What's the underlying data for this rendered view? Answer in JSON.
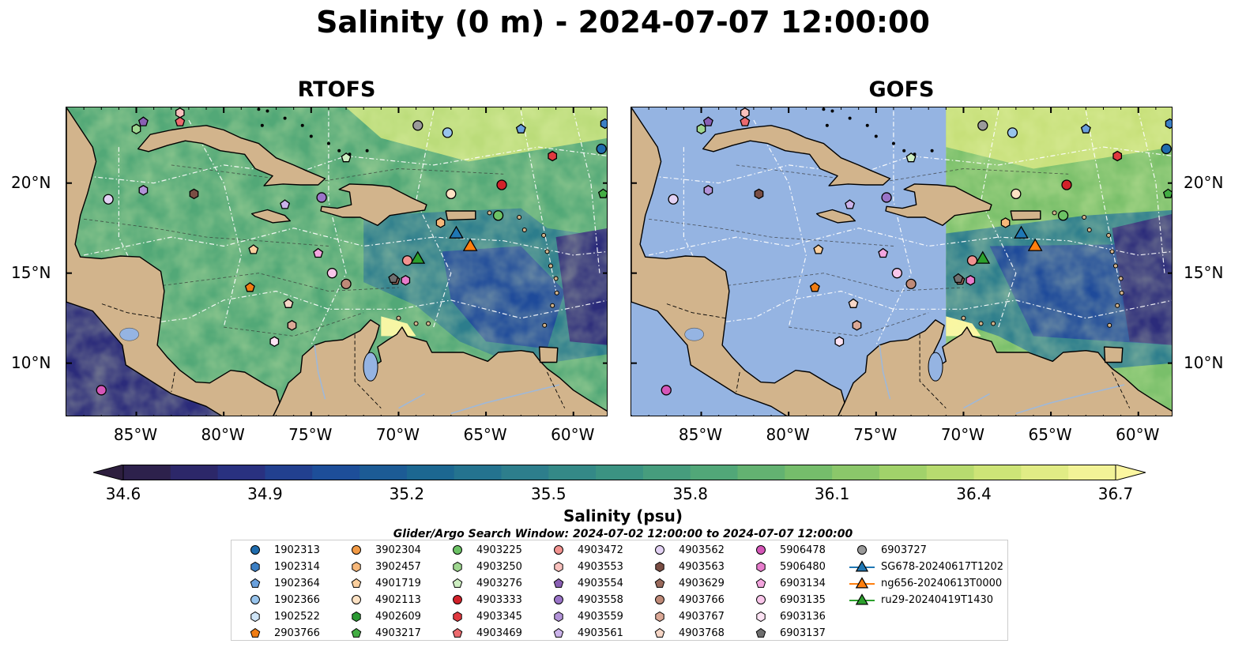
{
  "title": "Salinity (0 m) - 2024-07-07 12:00:00",
  "panels": [
    {
      "title": "RTOFS"
    },
    {
      "title": "GOFS"
    }
  ],
  "axes": {
    "lon_labels": [
      "85°W",
      "80°W",
      "75°W",
      "70°W",
      "65°W",
      "60°W"
    ],
    "lon_values": [
      -85,
      -80,
      -75,
      -70,
      -65,
      -60
    ],
    "lat_labels": [
      "20°N",
      "15°N",
      "10°N"
    ],
    "lat_values": [
      20,
      15,
      10
    ],
    "lon_range": [
      -89,
      -58
    ],
    "lat_range": [
      7,
      24.2
    ]
  },
  "colorbar": {
    "label": "Salinity (psu)",
    "ticks": [
      "34.6",
      "34.9",
      "35.2",
      "35.5",
      "35.8",
      "36.1",
      "36.4",
      "36.7"
    ],
    "range": [
      34.6,
      36.7
    ],
    "extend": "both",
    "colormap": [
      "#2d1e3e",
      "#2b2b7a",
      "#1e4a9a",
      "#1a6592",
      "#2c7d8c",
      "#3b9382",
      "#52a877",
      "#79bf6a",
      "#a8d56a",
      "#d6e87a",
      "#fbf6a0"
    ]
  },
  "search_window": "Glider/Argo Search Window: 2024-07-02 12:00:00 to 2024-07-07 12:00:00",
  "legend": [
    {
      "label": "1902313",
      "shape": "circle",
      "color": "#1f6cad"
    },
    {
      "label": "1902314",
      "shape": "hexagon",
      "color": "#3b7fc4"
    },
    {
      "label": "1902364",
      "shape": "pentagon",
      "color": "#6aa0dc"
    },
    {
      "label": "1902366",
      "shape": "circle",
      "color": "#98c4ec"
    },
    {
      "label": "1902522",
      "shape": "hexagon",
      "color": "#cfe5f7"
    },
    {
      "label": "2903766",
      "shape": "pentagon",
      "color": "#f07c12"
    },
    {
      "label": "3902304",
      "shape": "circle",
      "color": "#f29a45"
    },
    {
      "label": "3902457",
      "shape": "hexagon",
      "color": "#f7b87a"
    },
    {
      "label": "4901719",
      "shape": "pentagon",
      "color": "#fbcf9d"
    },
    {
      "label": "4902113",
      "shape": "circle",
      "color": "#fde2c4"
    },
    {
      "label": "4902609",
      "shape": "hexagon",
      "color": "#2c9a34"
    },
    {
      "label": "4903217",
      "shape": "pentagon",
      "color": "#43ad43"
    },
    {
      "label": "4903225",
      "shape": "circle",
      "color": "#6cc265"
    },
    {
      "label": "4903250",
      "shape": "hexagon",
      "color": "#9ed68f"
    },
    {
      "label": "4903276",
      "shape": "pentagon",
      "color": "#cdeec1"
    },
    {
      "label": "4903333",
      "shape": "circle",
      "color": "#d2222a"
    },
    {
      "label": "4903345",
      "shape": "hexagon",
      "color": "#e0393f"
    },
    {
      "label": "4903469",
      "shape": "pentagon",
      "color": "#ec6a6e"
    },
    {
      "label": "4903472",
      "shape": "circle",
      "color": "#f29390"
    },
    {
      "label": "4903553",
      "shape": "hexagon",
      "color": "#f9c1bd"
    },
    {
      "label": "4903554",
      "shape": "pentagon",
      "color": "#8a5fb4"
    },
    {
      "label": "4903558",
      "shape": "circle",
      "color": "#9a74c8"
    },
    {
      "label": "4903559",
      "shape": "hexagon",
      "color": "#b293d8"
    },
    {
      "label": "4903561",
      "shape": "pentagon",
      "color": "#cbb3ea"
    },
    {
      "label": "4903562",
      "shape": "circle",
      "color": "#e3d2f4"
    },
    {
      "label": "4903563",
      "shape": "hexagon",
      "color": "#7a4e44"
    },
    {
      "label": "4903629",
      "shape": "pentagon",
      "color": "#9a6a5c"
    },
    {
      "label": "4903766",
      "shape": "circle",
      "color": "#bf8a78"
    },
    {
      "label": "4903767",
      "shape": "hexagon",
      "color": "#dba896"
    },
    {
      "label": "4903768",
      "shape": "pentagon",
      "color": "#f6d6c6"
    },
    {
      "label": "5906478",
      "shape": "circle",
      "color": "#d556b8"
    },
    {
      "label": "5906480",
      "shape": "hexagon",
      "color": "#e77ccc"
    },
    {
      "label": "6903134",
      "shape": "pentagon",
      "color": "#f3a5de"
    },
    {
      "label": "6903135",
      "shape": "circle",
      "color": "#f9c6ea"
    },
    {
      "label": "6903136",
      "shape": "hexagon",
      "color": "#fde3f4"
    },
    {
      "label": "6903137",
      "shape": "pentagon",
      "color": "#6f6f6f"
    },
    {
      "label": "6903727",
      "shape": "circle",
      "color": "#9a9a9a"
    },
    {
      "label": "SG678-20240617T1202",
      "shape": "triangle",
      "color": "#1f77b4"
    },
    {
      "label": "ng656-20240613T0000",
      "shape": "triangle",
      "color": "#ff7f0e"
    },
    {
      "label": "ru29-20240419T1430",
      "shape": "triangle",
      "color": "#2ca02c"
    }
  ],
  "markers": [
    {
      "id": "1902313",
      "lon": -58.4,
      "lat": 21.9
    },
    {
      "id": "1902314",
      "lon": -58.2,
      "lat": 23.3
    },
    {
      "id": "1902364",
      "lon": -63.0,
      "lat": 23.0
    },
    {
      "id": "1902366",
      "lon": -67.2,
      "lat": 22.8
    },
    {
      "id": "2903766",
      "lon": -78.5,
      "lat": 14.2
    },
    {
      "id": "4901719",
      "lon": -78.3,
      "lat": 16.3
    },
    {
      "id": "3902457",
      "lon": -67.6,
      "lat": 17.8
    },
    {
      "id": "4902113",
      "lon": -67.0,
      "lat": 19.4
    },
    {
      "id": "4903225",
      "lon": -64.3,
      "lat": 18.2
    },
    {
      "id": "4903217",
      "lon": -58.3,
      "lat": 19.4
    },
    {
      "id": "4903250",
      "lon": -85.0,
      "lat": 23.0
    },
    {
      "id": "4903276",
      "lon": -73.0,
      "lat": 21.4
    },
    {
      "id": "4903333",
      "lon": -64.1,
      "lat": 19.9
    },
    {
      "id": "4903345",
      "lon": -61.2,
      "lat": 21.5
    },
    {
      "id": "4903469",
      "lon": -82.5,
      "lat": 23.4
    },
    {
      "id": "4903553",
      "lon": -82.5,
      "lat": 23.9
    },
    {
      "id": "4903554",
      "lon": -84.6,
      "lat": 23.4
    },
    {
      "id": "4903558",
      "lon": -74.4,
      "lat": 19.2
    },
    {
      "id": "4903559",
      "lon": -84.6,
      "lat": 19.6
    },
    {
      "id": "4903561",
      "lon": -76.5,
      "lat": 18.8
    },
    {
      "id": "4903562",
      "lon": -86.6,
      "lat": 19.1
    },
    {
      "id": "4903563",
      "lon": -81.7,
      "lat": 19.4
    },
    {
      "id": "4903629",
      "lon": -70.2,
      "lat": 14.6
    },
    {
      "id": "4903766",
      "lon": -73.0,
      "lat": 14.4
    },
    {
      "id": "4903767",
      "lon": -76.1,
      "lat": 12.1
    },
    {
      "id": "4903768",
      "lon": -76.3,
      "lat": 13.3
    },
    {
      "id": "5906478",
      "lon": -87.0,
      "lat": 8.5
    },
    {
      "id": "5906480",
      "lon": -69.6,
      "lat": 14.6
    },
    {
      "id": "6903134",
      "lon": -74.6,
      "lat": 16.1
    },
    {
      "id": "6903135",
      "lon": -73.8,
      "lat": 15.0
    },
    {
      "id": "6903136",
      "lon": -77.1,
      "lat": 11.2
    },
    {
      "id": "6903137",
      "lon": -70.3,
      "lat": 14.7
    },
    {
      "id": "6903727",
      "lon": -68.9,
      "lat": 23.2
    },
    {
      "id": "4903472",
      "lon": -69.5,
      "lat": 15.7
    },
    {
      "id": "SG678-20240617T1202",
      "lon": -66.7,
      "lat": 17.2
    },
    {
      "id": "ng656-20240613T0000",
      "lon": -65.9,
      "lat": 16.5
    },
    {
      "id": "ru29-20240419T1430",
      "lon": -68.9,
      "lat": 15.8
    }
  ]
}
